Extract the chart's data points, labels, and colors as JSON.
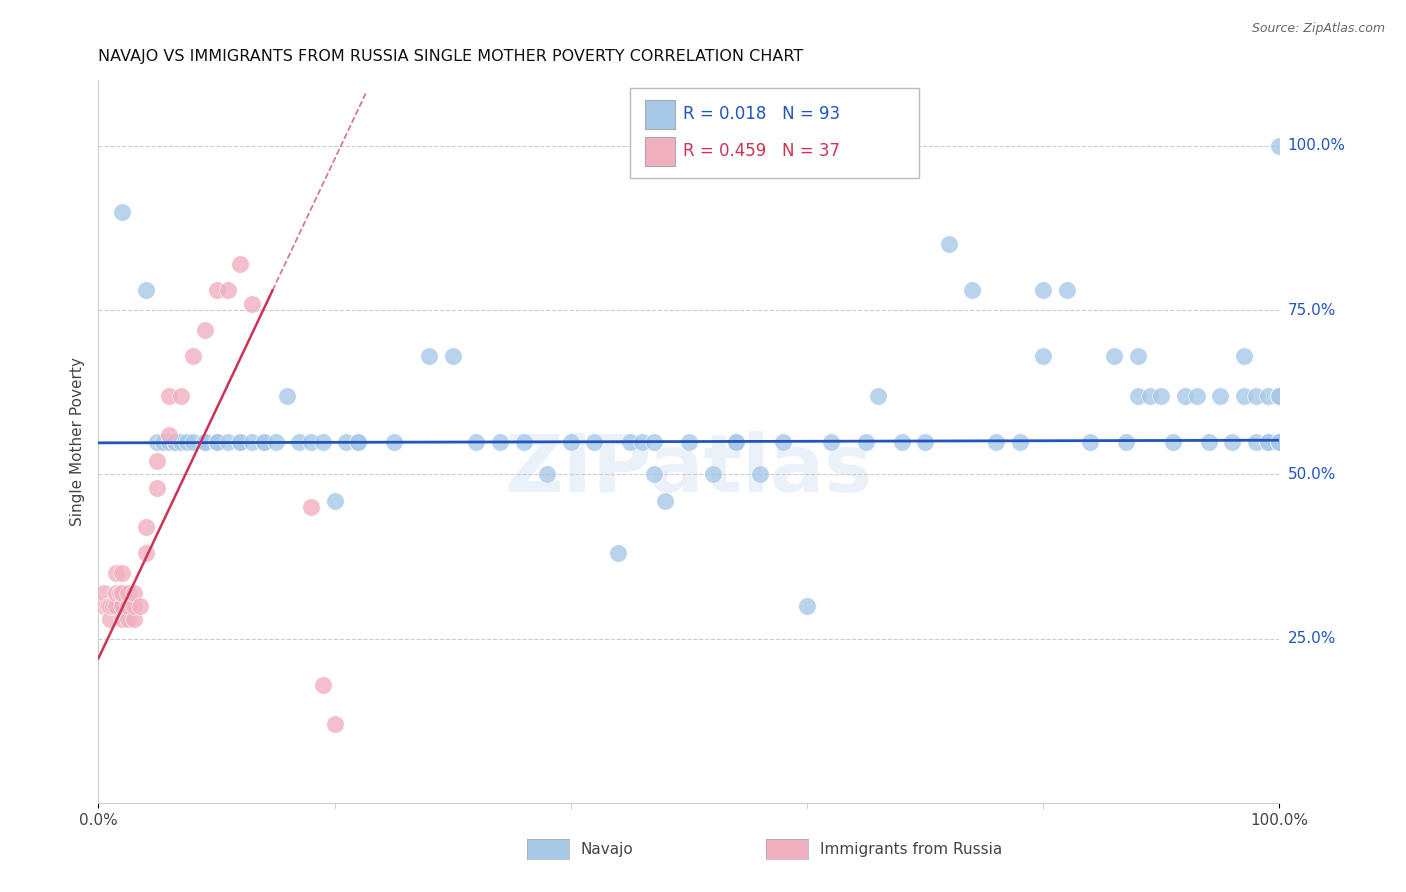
{
  "title": "NAVAJO VS IMMIGRANTS FROM RUSSIA SINGLE MOTHER POVERTY CORRELATION CHART",
  "source": "Source: ZipAtlas.com",
  "ylabel": "Single Mother Poverty",
  "navajo_R": 0.018,
  "navajo_N": 93,
  "russia_R": 0.459,
  "russia_N": 37,
  "navajo_color": "#a8c8e8",
  "russia_color": "#f0b0c0",
  "navajo_line_color": "#2255bb",
  "russia_line_color": "#cc3355",
  "grid_color": "#cccccc",
  "background_color": "#ffffff",
  "watermark": "ZIPatlas",
  "navajo_x": [
    0.02,
    0.04,
    0.05,
    0.055,
    0.06,
    0.065,
    0.065,
    0.07,
    0.075,
    0.08,
    0.09,
    0.09,
    0.09,
    0.1,
    0.1,
    0.1,
    0.11,
    0.12,
    0.12,
    0.13,
    0.14,
    0.14,
    0.15,
    0.16,
    0.17,
    0.18,
    0.19,
    0.2,
    0.21,
    0.22,
    0.22,
    0.25,
    0.28,
    0.3,
    0.32,
    0.34,
    0.36,
    0.38,
    0.4,
    0.42,
    0.44,
    0.45,
    0.46,
    0.47,
    0.47,
    0.48,
    0.5,
    0.52,
    0.54,
    0.54,
    0.56,
    0.58,
    0.6,
    0.62,
    0.65,
    0.66,
    0.68,
    0.7,
    0.72,
    0.74,
    0.76,
    0.78,
    0.8,
    0.8,
    0.82,
    0.84,
    0.86,
    0.87,
    0.88,
    0.88,
    0.89,
    0.9,
    0.91,
    0.92,
    0.93,
    0.94,
    0.95,
    0.96,
    0.97,
    0.97,
    0.98,
    0.98,
    0.99,
    0.99,
    0.99,
    1.0,
    1.0,
    1.0,
    1.0,
    1.0,
    1.0,
    1.0,
    1.0
  ],
  "navajo_y": [
    0.9,
    0.78,
    0.55,
    0.55,
    0.55,
    0.55,
    0.55,
    0.55,
    0.55,
    0.55,
    0.55,
    0.55,
    0.55,
    0.55,
    0.55,
    0.55,
    0.55,
    0.55,
    0.55,
    0.55,
    0.55,
    0.55,
    0.55,
    0.62,
    0.55,
    0.55,
    0.55,
    0.46,
    0.55,
    0.55,
    0.55,
    0.55,
    0.68,
    0.68,
    0.55,
    0.55,
    0.55,
    0.5,
    0.55,
    0.55,
    0.38,
    0.55,
    0.55,
    0.5,
    0.55,
    0.46,
    0.55,
    0.5,
    0.55,
    0.55,
    0.5,
    0.55,
    0.3,
    0.55,
    0.55,
    0.62,
    0.55,
    0.55,
    0.85,
    0.78,
    0.55,
    0.55,
    0.68,
    0.78,
    0.78,
    0.55,
    0.68,
    0.55,
    0.62,
    0.68,
    0.62,
    0.62,
    0.55,
    0.62,
    0.62,
    0.55,
    0.62,
    0.55,
    0.62,
    0.68,
    0.55,
    0.62,
    0.55,
    0.62,
    0.55,
    0.62,
    0.55,
    0.62,
    0.55,
    0.62,
    0.55,
    0.62,
    1.0
  ],
  "russia_x": [
    0.005,
    0.005,
    0.008,
    0.01,
    0.01,
    0.012,
    0.015,
    0.015,
    0.015,
    0.018,
    0.02,
    0.02,
    0.02,
    0.02,
    0.025,
    0.025,
    0.025,
    0.03,
    0.03,
    0.03,
    0.035,
    0.04,
    0.04,
    0.05,
    0.05,
    0.06,
    0.06,
    0.07,
    0.08,
    0.09,
    0.1,
    0.11,
    0.12,
    0.13,
    0.18,
    0.19,
    0.2
  ],
  "russia_y": [
    0.3,
    0.32,
    0.3,
    0.28,
    0.3,
    0.3,
    0.3,
    0.32,
    0.35,
    0.32,
    0.28,
    0.3,
    0.32,
    0.35,
    0.28,
    0.3,
    0.32,
    0.28,
    0.3,
    0.32,
    0.3,
    0.38,
    0.42,
    0.48,
    0.52,
    0.56,
    0.62,
    0.62,
    0.68,
    0.72,
    0.78,
    0.78,
    0.82,
    0.76,
    0.45,
    0.18,
    0.12
  ],
  "xlim": [
    0.0,
    1.0
  ],
  "ylim": [
    0.0,
    1.1
  ],
  "yticks": [
    0.25,
    0.5,
    0.75,
    1.0
  ],
  "ytick_labels": [
    "25.0%",
    "50.0%",
    "75.0%",
    "100.0%"
  ],
  "xtick_labels": [
    "0.0%",
    "100.0%"
  ],
  "legend_navajo": "Navajo",
  "legend_russia": "Immigrants from Russia",
  "navajo_line_y_intercept": 0.548,
  "navajo_line_slope": 0.004,
  "russia_line_y_intercept": 0.22,
  "russia_line_slope": 3.8
}
